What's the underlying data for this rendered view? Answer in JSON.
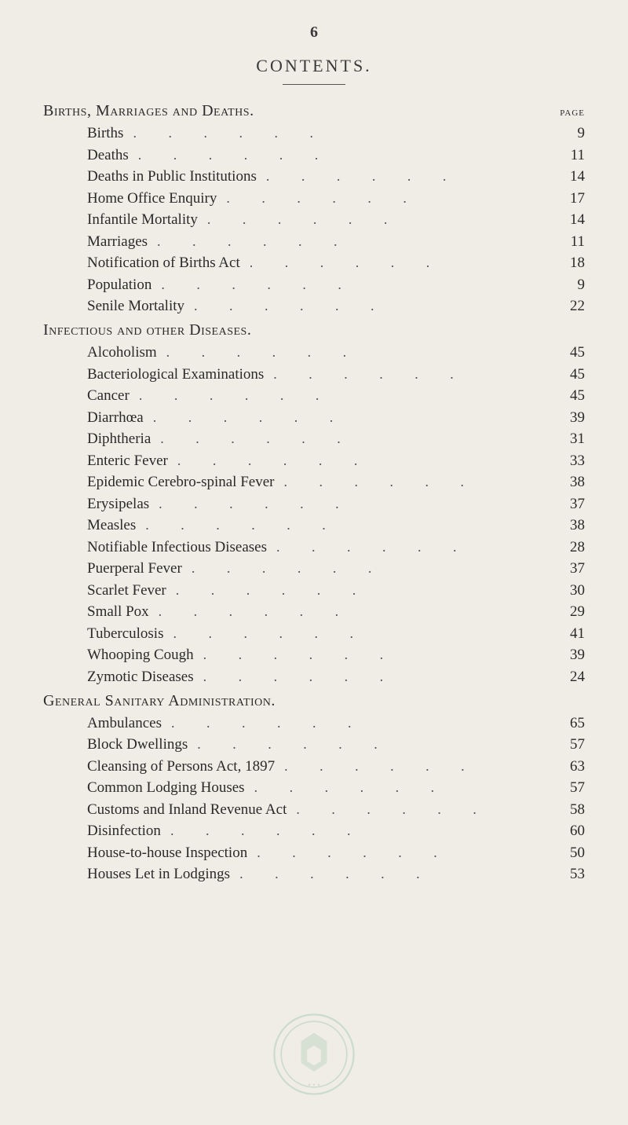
{
  "page_number": "6",
  "title": "CONTENTS.",
  "page_label": "page",
  "sections": [
    {
      "heading": "Births, Marriages and Deaths.",
      "entries": [
        {
          "label": "Births",
          "page": "9"
        },
        {
          "label": "Deaths",
          "page": "11"
        },
        {
          "label": "Deaths in Public Institutions",
          "page": "14"
        },
        {
          "label": "Home Office Enquiry",
          "page": "17"
        },
        {
          "label": "Infantile Mortality",
          "page": "14"
        },
        {
          "label": "Marriages",
          "page": "11"
        },
        {
          "label": "Notification of Births Act",
          "page": "18"
        },
        {
          "label": "Population",
          "page": "9"
        },
        {
          "label": "Senile Mortality",
          "page": "22"
        }
      ]
    },
    {
      "heading": "Infectious and other Diseases.",
      "entries": [
        {
          "label": "Alcoholism",
          "page": "45"
        },
        {
          "label": "Bacteriological Examinations",
          "page": "45"
        },
        {
          "label": "Cancer",
          "page": "45"
        },
        {
          "label": "Diarrhœa",
          "page": "39"
        },
        {
          "label": "Diphtheria",
          "page": "31"
        },
        {
          "label": "Enteric Fever",
          "page": "33"
        },
        {
          "label": "Epidemic Cerebro-spinal Fever",
          "page": "38"
        },
        {
          "label": "Erysipelas",
          "page": "37"
        },
        {
          "label": "Measles",
          "page": "38"
        },
        {
          "label": "Notifiable Infectious Diseases",
          "page": "28"
        },
        {
          "label": "Puerperal Fever",
          "page": "37"
        },
        {
          "label": "Scarlet Fever",
          "page": "30"
        },
        {
          "label": "Small Pox",
          "page": "29"
        },
        {
          "label": "Tuberculosis",
          "page": "41"
        },
        {
          "label": "Whooping Cough",
          "page": "39"
        },
        {
          "label": "Zymotic Diseases",
          "page": "24"
        }
      ]
    },
    {
      "heading": "General Sanitary Administration.",
      "entries": [
        {
          "label": "Ambulances",
          "page": "65"
        },
        {
          "label": "Block Dwellings",
          "page": "57"
        },
        {
          "label": "Cleansing of Persons Act, 1897",
          "page": "63"
        },
        {
          "label": "Common Lodging Houses",
          "page": "57"
        },
        {
          "label": "Customs and Inland Revenue Act",
          "page": "58"
        },
        {
          "label": "Disinfection",
          "page": "60"
        },
        {
          "label": "House-to-house Inspection",
          "page": "50"
        },
        {
          "label": "Houses Let in Lodgings",
          "page": "53"
        }
      ]
    }
  ],
  "seal_color": "#7fb89a",
  "dots_string": "................",
  "colors": {
    "background": "#f0ede6",
    "text": "#2a2a2a"
  }
}
